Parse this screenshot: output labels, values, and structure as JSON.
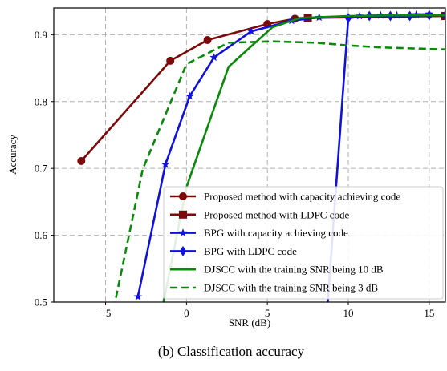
{
  "caption": "(b) Classification accuracy",
  "chart_data": {
    "type": "line",
    "title": "",
    "xlabel": "SNR (dB)",
    "ylabel": "Accuracy",
    "xlim": [
      -8.2,
      16
    ],
    "ylim": [
      0.5,
      0.94
    ],
    "xticks": [
      -5,
      0,
      5,
      10,
      15
    ],
    "xtick_labels": [
      "−5",
      "0",
      "5",
      "10",
      "15"
    ],
    "yticks": [
      0.5,
      0.6,
      0.7,
      0.8,
      0.9
    ],
    "ytick_labels": [
      "0.5",
      "0.6",
      "0.7",
      "0.8",
      "0.9"
    ],
    "grid": true,
    "legend_position": "lower-right",
    "series": [
      {
        "name": "Proposed method with capacity achieving code",
        "color": "#7b0a0a",
        "dash": "solid",
        "marker": "circle",
        "x": [
          -6.5,
          -1,
          1.3,
          5,
          6.7,
          7.5
        ],
        "y": [
          0.711,
          0.861,
          0.892,
          0.916,
          0.924,
          0.925
        ]
      },
      {
        "name": "Proposed method with LDPC code",
        "color": "#7b0a0a",
        "dash": "solid",
        "marker": "square",
        "x": [
          7.5,
          16
        ],
        "y": [
          0.925,
          0.928
        ]
      },
      {
        "name": "BPG with capacity achieving code",
        "color": "#1111dd",
        "dash": "solid",
        "marker": "star",
        "x": [
          -3,
          -1.3,
          0.2,
          1.7,
          4,
          6.5,
          8.2,
          10.7,
          12,
          13,
          14.2,
          15
        ],
        "y": [
          0.508,
          0.706,
          0.808,
          0.866,
          0.905,
          0.921,
          0.926,
          0.928,
          0.929,
          0.929,
          0.93,
          0.931
        ]
      },
      {
        "name": "BPG with LDPC code",
        "color": "#1111dd",
        "dash": "solid",
        "marker": "diamond",
        "x": [
          8.7,
          10,
          11.3,
          12.6,
          13.8,
          15,
          16
        ],
        "y": [
          0.49,
          0.925,
          0.928,
          0.928,
          0.928,
          0.929,
          0.929
        ]
      },
      {
        "name": "DJSCC with the training SNR being 10 dB",
        "color": "#0a8a0a",
        "dash": "solid",
        "marker": "none",
        "x": [
          -1.5,
          0,
          2.6,
          5.3,
          7,
          10,
          13,
          16
        ],
        "y": [
          0.49,
          0.672,
          0.852,
          0.911,
          0.925,
          0.928,
          0.929,
          0.929
        ]
      },
      {
        "name": "DJSCC with the training SNR being 3 dB",
        "color": "#0a8a0a",
        "dash": "dashed",
        "marker": "none",
        "x": [
          -4.5,
          -2.7,
          0,
          2.6,
          5.3,
          8,
          10,
          12,
          16
        ],
        "y": [
          0.49,
          0.699,
          0.856,
          0.888,
          0.89,
          0.888,
          0.884,
          0.881,
          0.878
        ]
      }
    ]
  }
}
